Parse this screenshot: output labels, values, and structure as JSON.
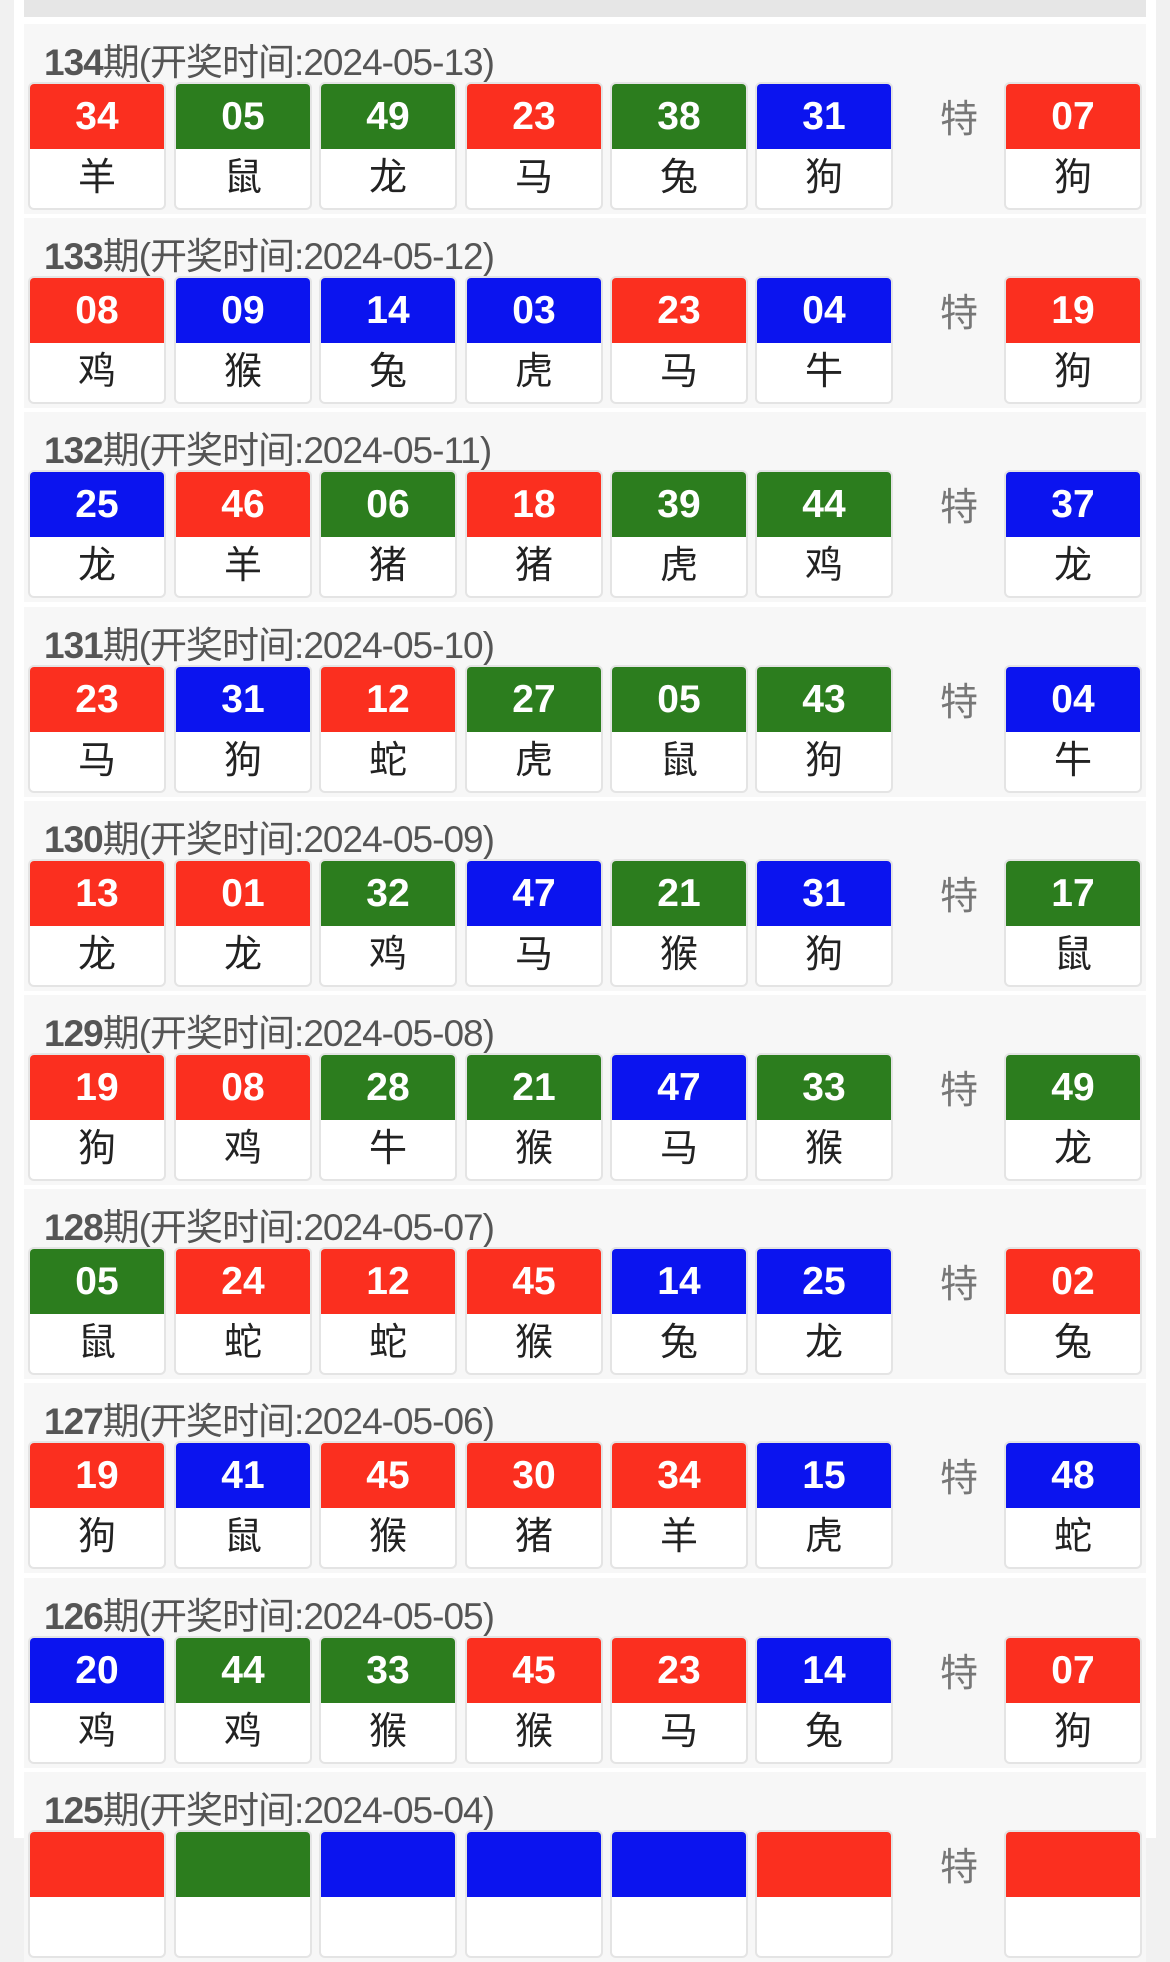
{
  "colors": {
    "red": "#fb2f1f",
    "green": "#2c7d1e",
    "blue": "#0b14ef"
  },
  "special_label": "特",
  "draws": [
    {
      "issue": "134",
      "label": "期(开奖时间:2024-05-13)",
      "balls": [
        {
          "n": "34",
          "z": "羊",
          "c": "red"
        },
        {
          "n": "05",
          "z": "鼠",
          "c": "green"
        },
        {
          "n": "49",
          "z": "龙",
          "c": "green"
        },
        {
          "n": "23",
          "z": "马",
          "c": "red"
        },
        {
          "n": "38",
          "z": "兔",
          "c": "green"
        },
        {
          "n": "31",
          "z": "狗",
          "c": "blue"
        }
      ],
      "special": {
        "n": "07",
        "z": "狗",
        "c": "red"
      }
    },
    {
      "issue": "133",
      "label": "期(开奖时间:2024-05-12)",
      "balls": [
        {
          "n": "08",
          "z": "鸡",
          "c": "red"
        },
        {
          "n": "09",
          "z": "猴",
          "c": "blue"
        },
        {
          "n": "14",
          "z": "兔",
          "c": "blue"
        },
        {
          "n": "03",
          "z": "虎",
          "c": "blue"
        },
        {
          "n": "23",
          "z": "马",
          "c": "red"
        },
        {
          "n": "04",
          "z": "牛",
          "c": "blue"
        }
      ],
      "special": {
        "n": "19",
        "z": "狗",
        "c": "red"
      }
    },
    {
      "issue": "132",
      "label": "期(开奖时间:2024-05-11)",
      "balls": [
        {
          "n": "25",
          "z": "龙",
          "c": "blue"
        },
        {
          "n": "46",
          "z": "羊",
          "c": "red"
        },
        {
          "n": "06",
          "z": "猪",
          "c": "green"
        },
        {
          "n": "18",
          "z": "猪",
          "c": "red"
        },
        {
          "n": "39",
          "z": "虎",
          "c": "green"
        },
        {
          "n": "44",
          "z": "鸡",
          "c": "green"
        }
      ],
      "special": {
        "n": "37",
        "z": "龙",
        "c": "blue"
      }
    },
    {
      "issue": "131",
      "label": "期(开奖时间:2024-05-10)",
      "balls": [
        {
          "n": "23",
          "z": "马",
          "c": "red"
        },
        {
          "n": "31",
          "z": "狗",
          "c": "blue"
        },
        {
          "n": "12",
          "z": "蛇",
          "c": "red"
        },
        {
          "n": "27",
          "z": "虎",
          "c": "green"
        },
        {
          "n": "05",
          "z": "鼠",
          "c": "green"
        },
        {
          "n": "43",
          "z": "狗",
          "c": "green"
        }
      ],
      "special": {
        "n": "04",
        "z": "牛",
        "c": "blue"
      }
    },
    {
      "issue": "130",
      "label": "期(开奖时间:2024-05-09)",
      "balls": [
        {
          "n": "13",
          "z": "龙",
          "c": "red"
        },
        {
          "n": "01",
          "z": "龙",
          "c": "red"
        },
        {
          "n": "32",
          "z": "鸡",
          "c": "green"
        },
        {
          "n": "47",
          "z": "马",
          "c": "blue"
        },
        {
          "n": "21",
          "z": "猴",
          "c": "green"
        },
        {
          "n": "31",
          "z": "狗",
          "c": "blue"
        }
      ],
      "special": {
        "n": "17",
        "z": "鼠",
        "c": "green"
      }
    },
    {
      "issue": "129",
      "label": "期(开奖时间:2024-05-08)",
      "balls": [
        {
          "n": "19",
          "z": "狗",
          "c": "red"
        },
        {
          "n": "08",
          "z": "鸡",
          "c": "red"
        },
        {
          "n": "28",
          "z": "牛",
          "c": "green"
        },
        {
          "n": "21",
          "z": "猴",
          "c": "green"
        },
        {
          "n": "47",
          "z": "马",
          "c": "blue"
        },
        {
          "n": "33",
          "z": "猴",
          "c": "green"
        }
      ],
      "special": {
        "n": "49",
        "z": "龙",
        "c": "green"
      }
    },
    {
      "issue": "128",
      "label": "期(开奖时间:2024-05-07)",
      "balls": [
        {
          "n": "05",
          "z": "鼠",
          "c": "green"
        },
        {
          "n": "24",
          "z": "蛇",
          "c": "red"
        },
        {
          "n": "12",
          "z": "蛇",
          "c": "red"
        },
        {
          "n": "45",
          "z": "猴",
          "c": "red"
        },
        {
          "n": "14",
          "z": "兔",
          "c": "blue"
        },
        {
          "n": "25",
          "z": "龙",
          "c": "blue"
        }
      ],
      "special": {
        "n": "02",
        "z": "兔",
        "c": "red"
      }
    },
    {
      "issue": "127",
      "label": "期(开奖时间:2024-05-06)",
      "balls": [
        {
          "n": "19",
          "z": "狗",
          "c": "red"
        },
        {
          "n": "41",
          "z": "鼠",
          "c": "blue"
        },
        {
          "n": "45",
          "z": "猴",
          "c": "red"
        },
        {
          "n": "30",
          "z": "猪",
          "c": "red"
        },
        {
          "n": "34",
          "z": "羊",
          "c": "red"
        },
        {
          "n": "15",
          "z": "虎",
          "c": "blue"
        }
      ],
      "special": {
        "n": "48",
        "z": "蛇",
        "c": "blue"
      }
    },
    {
      "issue": "126",
      "label": "期(开奖时间:2024-05-05)",
      "balls": [
        {
          "n": "20",
          "z": "鸡",
          "c": "blue"
        },
        {
          "n": "44",
          "z": "鸡",
          "c": "green"
        },
        {
          "n": "33",
          "z": "猴",
          "c": "green"
        },
        {
          "n": "45",
          "z": "猴",
          "c": "red"
        },
        {
          "n": "23",
          "z": "马",
          "c": "red"
        },
        {
          "n": "14",
          "z": "兔",
          "c": "blue"
        }
      ],
      "special": {
        "n": "07",
        "z": "狗",
        "c": "red"
      }
    },
    {
      "issue": "125",
      "label": "期(开奖时间:2024-05-04)",
      "balls": [
        {
          "c": "red"
        },
        {
          "c": "green"
        },
        {
          "c": "blue"
        },
        {
          "c": "blue"
        },
        {
          "c": "blue"
        },
        {
          "c": "red"
        }
      ],
      "special": {
        "c": "red"
      }
    }
  ]
}
